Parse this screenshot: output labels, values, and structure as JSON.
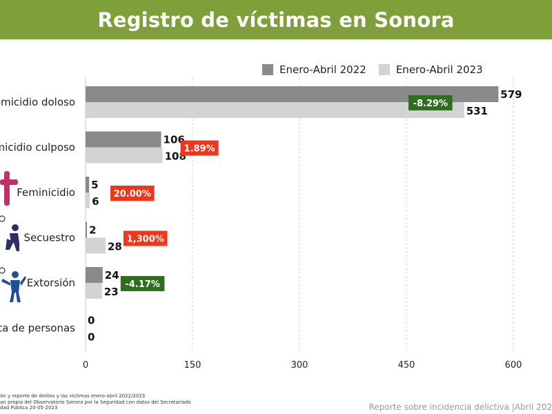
{
  "header": {
    "title": "Registro de víctimas en Sonora"
  },
  "colors": {
    "banner": "#7f9f3b",
    "series_2022": "#8a8a8a",
    "series_2023": "#d3d3d3",
    "badge_increase": "#f0361a",
    "badge_decrease": "#2e6e1e"
  },
  "chart_data": {
    "type": "bar",
    "orientation": "horizontal",
    "categories": [
      "omicidio doloso",
      "micidio culposo",
      "Feminicidio",
      "Secuestro",
      "Extorsión",
      "ta de personas"
    ],
    "series": [
      {
        "name": "Enero-Abril 2022",
        "values": [
          579,
          106,
          5,
          2,
          24,
          0
        ]
      },
      {
        "name": "Enero-Abril 2023",
        "values": [
          531,
          108,
          6,
          28,
          23,
          0
        ]
      }
    ],
    "value_labels_2022": [
      "579",
      "106",
      "5",
      "2",
      "24",
      "0"
    ],
    "value_labels_2023": [
      "531",
      "108",
      "6",
      "28",
      "23",
      "0"
    ],
    "change_labels": [
      "-8.29%",
      "1.89%",
      "20.00%",
      "1,300%",
      "-4.17%",
      ""
    ],
    "change_directions": [
      "down",
      "up",
      "up",
      "up",
      "down",
      ""
    ],
    "xlim": [
      0,
      600
    ],
    "x_ticks": [
      "0",
      "150",
      "300",
      "450",
      "600"
    ],
    "grid": "vertical dashed",
    "legend_position": "top-right"
  },
  "footnote": {
    "lines": [
      "ón y reporte de delitos y las víctimas enero-abril 2022/2023",
      "an propia del Observatorio Sonora por la Seguridad con datos del Secretariado",
      "dad Pública 20-05-2023"
    ]
  },
  "footer": {
    "right_text": "Reporte sobre incidencia delictiva |Abril 202"
  }
}
